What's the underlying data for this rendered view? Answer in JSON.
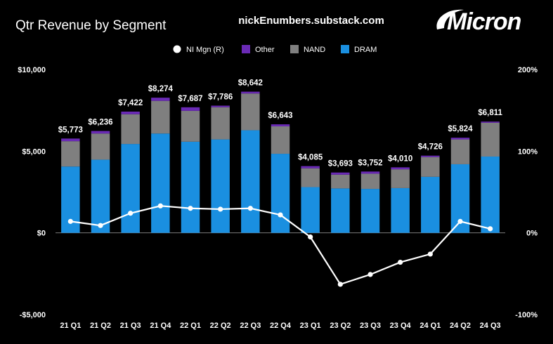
{
  "header": {
    "title": "Qtr Revenue by Segment",
    "site": "nickEnumbers.substack.com",
    "brand": "Micron",
    "brand_icon": "micron-swoosh-logo"
  },
  "colors": {
    "background": "#000000",
    "DRAM": "#1A8FE0",
    "NAND": "#7F7F7F",
    "Other": "#6A2AB5",
    "NI Mgn (R)": "#FFFFFF"
  },
  "chart_data": {
    "type": "bar",
    "stacked": true,
    "legend_position": "top",
    "grid": false,
    "categories": [
      "21 Q1",
      "21 Q2",
      "21 Q3",
      "21 Q4",
      "22 Q1",
      "22 Q2",
      "22 Q3",
      "22 Q4",
      "23 Q1",
      "23 Q2",
      "23 Q3",
      "23 Q4",
      "24 Q1",
      "24 Q2",
      "24 Q3"
    ],
    "series": [
      {
        "name": "DRAM",
        "values": [
          4060,
          4480,
          5440,
          6080,
          5580,
          5720,
          6280,
          4840,
          2800,
          2720,
          2690,
          2740,
          3430,
          4200,
          4670
        ]
      },
      {
        "name": "NAND",
        "values": [
          1550,
          1600,
          1820,
          2000,
          1890,
          1970,
          2250,
          1680,
          1150,
          840,
          930,
          1150,
          1210,
          1520,
          2070
        ]
      },
      {
        "name": "Other",
        "values": [
          163,
          156,
          162,
          194,
          217,
          96,
          112,
          123,
          135,
          133,
          132,
          120,
          86,
          104,
          71
        ]
      }
    ],
    "totals": [
      5773,
      6236,
      7422,
      8274,
      7687,
      7786,
      8642,
      6643,
      4085,
      3693,
      3752,
      4010,
      4726,
      5824,
      6811
    ],
    "total_labels": [
      "$5,773",
      "$6,236",
      "$7,422",
      "$8,274",
      "$7,687",
      "$7,786",
      "$8,642",
      "$6,643",
      "$4,085",
      "$3,693",
      "$3,752",
      "$4,010",
      "$4,726",
      "$5,824",
      "$6,811"
    ],
    "line": {
      "name": "NI Mgn (R)",
      "axis": "right",
      "values": [
        14,
        9,
        24,
        33,
        30,
        29,
        30,
        22,
        -5,
        -63,
        -51,
        -36,
        -26,
        14,
        5
      ]
    },
    "ylim": [
      -5000,
      10000
    ],
    "yticks": [
      -5000,
      0,
      5000,
      10000
    ],
    "ytick_labels": [
      "-$5,000",
      "$0",
      "$5,000",
      "$10,000"
    ],
    "y2lim": [
      -100,
      200
    ],
    "y2ticks": [
      -100,
      0,
      100,
      200
    ],
    "y2tick_labels": [
      "-100%",
      "0%",
      "100%",
      "200%"
    ],
    "legend": [
      "NI Mgn (R)",
      "Other",
      "NAND",
      "DRAM"
    ]
  }
}
